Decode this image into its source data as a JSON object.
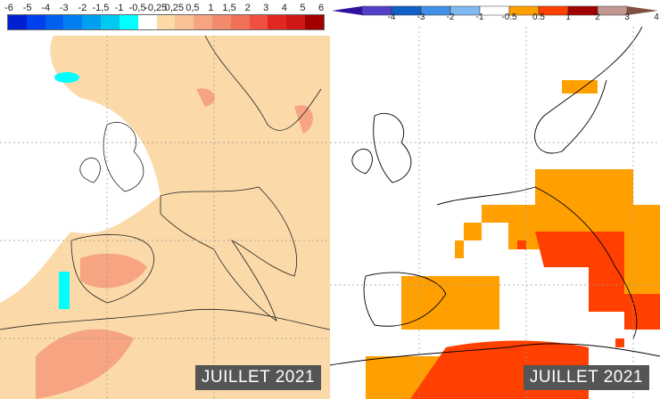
{
  "left_map": {
    "legend": {
      "labels": [
        "-6",
        "-5",
        "-4",
        "-3",
        "-2",
        "-1,5",
        "-1",
        "-0,5",
        "-0,25",
        "0,25",
        "0,5",
        "1",
        "1,5",
        "2",
        "3",
        "4",
        "5",
        "6"
      ],
      "colors": [
        "#0000a0",
        "#0020d0",
        "#0040ee",
        "#0060f0",
        "#0080f0",
        "#00a0f0",
        "#00c8f0",
        "#00ffff",
        "#ffffff",
        "#fdd9a6",
        "#f9c196",
        "#f6a482",
        "#f28a6c",
        "#f07058",
        "#f05040",
        "#e02820",
        "#d01818",
        "#a00000"
      ]
    },
    "badge": "JUILLET 2021"
  },
  "right_map": {
    "legend": {
      "labels": [
        "-4",
        "-3",
        "-2",
        "-1",
        "-0.5",
        "0.5",
        "1",
        "2",
        "3",
        "4"
      ],
      "colors": [
        "#3010a0",
        "#5040c8",
        "#1060c8",
        "#4090e8",
        "#80b8f0",
        "#ffffff",
        "#ffa000",
        "#ff4000",
        "#a00000",
        "#c09890",
        "#805040"
      ]
    },
    "badge": "JUILLET 2021"
  }
}
